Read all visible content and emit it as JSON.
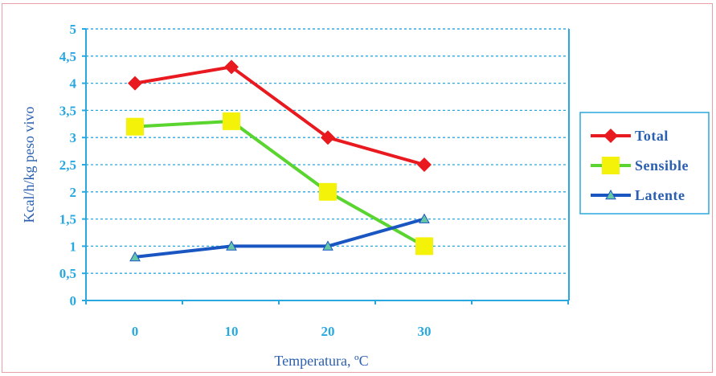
{
  "chart_data": {
    "type": "line",
    "title": "",
    "xlabel": "Temperatura, ºC",
    "ylabel": "Kcal/h/kg peso vivo",
    "x": [
      0,
      10,
      20,
      30
    ],
    "x_tick_labels": [
      "0",
      "10",
      "20",
      "30"
    ],
    "ylim": [
      0,
      5
    ],
    "y_ticks": [
      0,
      0.5,
      1,
      1.5,
      2,
      2.5,
      3,
      3.5,
      4,
      4.5,
      5
    ],
    "y_tick_labels": [
      "0",
      "0,5",
      "1",
      "1,5",
      "2",
      "2,5",
      "3",
      "3,5",
      "4",
      "4,5",
      "5"
    ],
    "grid": true,
    "legend_position": "right",
    "series": [
      {
        "name": "Total",
        "values": [
          4,
          4.3,
          3,
          2.5
        ],
        "color": "#e8191f",
        "marker": "diamond"
      },
      {
        "name": "Sensible",
        "values": [
          3.2,
          3.3,
          2,
          1
        ],
        "color": "#5ad52f",
        "marker": "square",
        "marker_color": "#f5f20a"
      },
      {
        "name": "Latente",
        "values": [
          0.8,
          1,
          1,
          1.5
        ],
        "color": "#1a56c2",
        "marker": "triangle"
      }
    ]
  },
  "colors": {
    "axis": "#29a8e0",
    "grid": "#29a8e0",
    "border": "#e7a0a8"
  }
}
